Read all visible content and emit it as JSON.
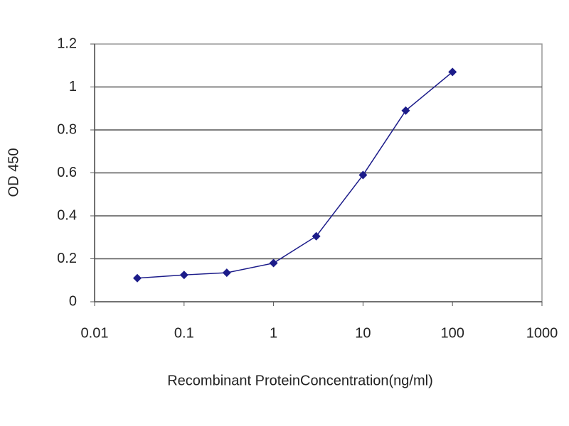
{
  "chart_data": {
    "type": "line",
    "x_label": "Recombinant ProteinConcentration(ng/ml)",
    "y_label": "OD 450",
    "x": [
      0.03,
      0.1,
      0.3,
      1,
      3,
      10,
      30,
      100
    ],
    "series": [
      {
        "color": "#1c1c8a",
        "values": [
          0.11,
          0.125,
          0.135,
          0.18,
          0.305,
          0.59,
          0.89,
          1.07
        ]
      }
    ],
    "xscale": "log",
    "xlim": [
      0.01,
      1000
    ],
    "xticks": [
      0.01,
      0.1,
      1,
      10,
      100,
      1000
    ],
    "ylim": [
      0,
      1.2
    ],
    "yticks": [
      0,
      0.2,
      0.4,
      0.6,
      0.8,
      1,
      1.2
    ],
    "grid": true
  }
}
